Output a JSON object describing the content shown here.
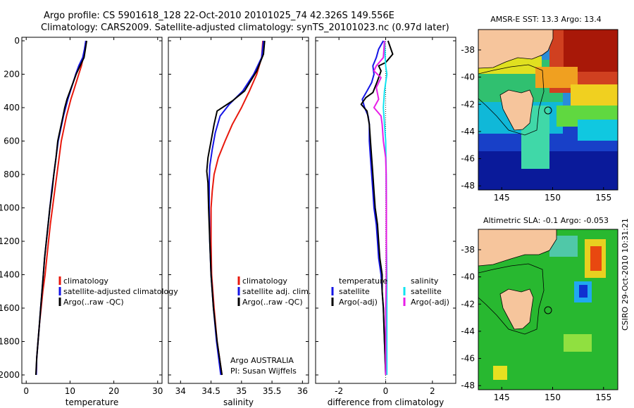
{
  "title": {
    "line1": "Argo profile: CS 5901618_128 22-Oct-2010 20101025_74 42.326S 149.556E",
    "line2": "Climatology: CARS2009. Satellite-adjusted climatology: synTS_20101023.nc (0.97d later)"
  },
  "credit": {
    "program": "Argo AUSTRALIA",
    "pi": "PI: Susan Wijffels"
  },
  "stamp": "CSIRO 29-Oct-2010 10:31:21",
  "colors": {
    "climatology": "#e8180c",
    "satellite": "#1414e6",
    "argo": "#000000",
    "sat_salinity": "#10e4f0",
    "argo_salinity": "#e81ee8",
    "land": "#f6c59c"
  },
  "chart_data": [
    {
      "type": "line",
      "xlabel": "temperature",
      "xlim": [
        -1,
        31
      ],
      "ylim": [
        2000,
        0
      ],
      "xticks": [
        0,
        10,
        20,
        30
      ],
      "yticks": [
        0,
        200,
        400,
        600,
        800,
        1000,
        1200,
        1400,
        1600,
        1800,
        2000
      ],
      "legend": [
        "climatology",
        "satellite-adjusted climatology",
        "Argo(..raw -QC)"
      ],
      "series": [
        {
          "name": "climatology",
          "color": "#e8180c",
          "points": [
            [
              13.6,
              0
            ],
            [
              13.4,
              50
            ],
            [
              13.0,
              100
            ],
            [
              12.6,
              150
            ],
            [
              12.0,
              200
            ],
            [
              11.4,
              250
            ],
            [
              10.8,
              300
            ],
            [
              10.2,
              350
            ],
            [
              9.7,
              400
            ],
            [
              9.2,
              450
            ],
            [
              8.8,
              500
            ],
            [
              8.4,
              550
            ],
            [
              8.0,
              600
            ],
            [
              7.5,
              700
            ],
            [
              7.0,
              800
            ],
            [
              6.5,
              900
            ],
            [
              6.0,
              1000
            ],
            [
              5.5,
              1100
            ],
            [
              5.1,
              1200
            ],
            [
              4.7,
              1300
            ],
            [
              4.3,
              1400
            ],
            [
              3.8,
              1500
            ],
            [
              3.4,
              1600
            ],
            [
              3.0,
              1700
            ],
            [
              2.7,
              1800
            ],
            [
              2.4,
              1900
            ],
            [
              2.3,
              2000
            ]
          ]
        },
        {
          "name": "satellite-adjusted climatology",
          "color": "#1414e6",
          "points": [
            [
              13.6,
              0
            ],
            [
              13.3,
              50
            ],
            [
              12.9,
              100
            ],
            [
              12.0,
              150
            ],
            [
              11.3,
              200
            ],
            [
              10.7,
              250
            ],
            [
              10.1,
              300
            ],
            [
              9.5,
              350
            ],
            [
              9.0,
              400
            ],
            [
              8.5,
              450
            ],
            [
              8.1,
              500
            ],
            [
              7.7,
              550
            ],
            [
              7.3,
              600
            ],
            [
              6.8,
              700
            ],
            [
              6.3,
              800
            ],
            [
              5.8,
              900
            ],
            [
              5.4,
              1000
            ],
            [
              5.0,
              1100
            ],
            [
              4.6,
              1200
            ],
            [
              4.2,
              1300
            ],
            [
              3.9,
              1400
            ],
            [
              3.6,
              1500
            ],
            [
              3.3,
              1600
            ],
            [
              3.0,
              1700
            ],
            [
              2.7,
              1800
            ],
            [
              2.4,
              1900
            ],
            [
              2.3,
              2000
            ]
          ]
        },
        {
          "name": "Argo(..raw -QC)",
          "color": "#000000",
          "points": [
            [
              13.8,
              0
            ],
            [
              13.5,
              50
            ],
            [
              13.2,
              100
            ],
            [
              12.3,
              150
            ],
            [
              11.4,
              200
            ],
            [
              10.7,
              250
            ],
            [
              10.0,
              300
            ],
            [
              9.3,
              350
            ],
            [
              8.8,
              400
            ],
            [
              8.4,
              450
            ],
            [
              8.0,
              500
            ],
            [
              7.6,
              550
            ],
            [
              7.2,
              600
            ],
            [
              6.8,
              700
            ],
            [
              6.3,
              800
            ],
            [
              5.9,
              900
            ],
            [
              5.4,
              1000
            ],
            [
              5.0,
              1100
            ],
            [
              4.6,
              1200
            ],
            [
              4.2,
              1300
            ],
            [
              3.9,
              1400
            ],
            [
              3.6,
              1500
            ],
            [
              3.3,
              1600
            ],
            [
              3.0,
              1700
            ],
            [
              2.7,
              1800
            ],
            [
              2.4,
              1900
            ],
            [
              2.2,
              2000
            ]
          ]
        }
      ]
    },
    {
      "type": "line",
      "xlabel": "salinity",
      "xlim": [
        33.8,
        36.1
      ],
      "ylim": [
        2000,
        0
      ],
      "xticks": [
        34,
        34.5,
        35,
        35.5,
        36
      ],
      "xticklabels": [
        "34",
        "34.5",
        "35",
        "35.5",
        "36"
      ],
      "yticks": [
        0,
        200,
        400,
        600,
        800,
        1000,
        1200,
        1400,
        1600,
        1800,
        2000
      ],
      "legend": [
        "climatology",
        "satellite adj. clim.",
        "Argo(..raw -QC)"
      ],
      "series": [
        {
          "name": "climatology",
          "color": "#e8180c",
          "points": [
            [
              35.35,
              0
            ],
            [
              35.33,
              100
            ],
            [
              35.25,
              200
            ],
            [
              35.13,
              300
            ],
            [
              35.0,
              400
            ],
            [
              34.85,
              500
            ],
            [
              34.73,
              600
            ],
            [
              34.62,
              700
            ],
            [
              34.55,
              800
            ],
            [
              34.52,
              900
            ],
            [
              34.5,
              1000
            ],
            [
              34.5,
              1200
            ],
            [
              34.51,
              1400
            ],
            [
              34.55,
              1600
            ],
            [
              34.6,
              1800
            ],
            [
              34.68,
              2000
            ]
          ]
        },
        {
          "name": "satellite adj. clim.",
          "color": "#1414e6",
          "points": [
            [
              35.36,
              0
            ],
            [
              35.33,
              100
            ],
            [
              35.2,
              200
            ],
            [
              35.02,
              300
            ],
            [
              34.8,
              380
            ],
            [
              34.65,
              450
            ],
            [
              34.57,
              550
            ],
            [
              34.52,
              650
            ],
            [
              34.48,
              750
            ],
            [
              34.47,
              850
            ],
            [
              34.47,
              1000
            ],
            [
              34.48,
              1200
            ],
            [
              34.5,
              1400
            ],
            [
              34.54,
              1600
            ],
            [
              34.59,
              1800
            ],
            [
              34.66,
              2000
            ]
          ]
        },
        {
          "name": "Argo(..raw -QC)",
          "color": "#000000",
          "points": [
            [
              35.38,
              0
            ],
            [
              35.36,
              80
            ],
            [
              35.25,
              180
            ],
            [
              35.05,
              300
            ],
            [
              34.85,
              360
            ],
            [
              34.6,
              420
            ],
            [
              34.55,
              500
            ],
            [
              34.5,
              600
            ],
            [
              34.45,
              700
            ],
            [
              34.43,
              780
            ],
            [
              34.45,
              850
            ],
            [
              34.46,
              1000
            ],
            [
              34.48,
              1200
            ],
            [
              34.5,
              1400
            ],
            [
              34.54,
              1600
            ],
            [
              34.6,
              1800
            ],
            [
              34.68,
              2000
            ]
          ]
        }
      ]
    },
    {
      "type": "line",
      "xlabel": "difference from climatology",
      "xlim": [
        -3,
        3
      ],
      "ylim": [
        2000,
        0
      ],
      "xticks": [
        -2,
        0,
        2
      ],
      "yticks": [
        0,
        200,
        400,
        600,
        800,
        1000,
        1200,
        1400,
        1600,
        1800,
        2000
      ],
      "legend_titles": [
        "temperature",
        "salinity"
      ],
      "legend": [
        "satellite",
        "Argo(-adj)",
        "satellite",
        "Argo(-adj)"
      ],
      "series": [
        {
          "name": "satellite",
          "color": "#1414e6",
          "points": [
            [
              -0.1,
              0
            ],
            [
              -0.3,
              50
            ],
            [
              -0.4,
              100
            ],
            [
              -0.55,
              150
            ],
            [
              -0.5,
              200
            ],
            [
              -0.6,
              250
            ],
            [
              -0.8,
              300
            ],
            [
              -1.0,
              350
            ],
            [
              -0.9,
              400
            ],
            [
              -0.75,
              450
            ],
            [
              -0.7,
              500
            ],
            [
              -0.7,
              600
            ],
            [
              -0.65,
              700
            ],
            [
              -0.6,
              800
            ],
            [
              -0.55,
              900
            ],
            [
              -0.5,
              1000
            ],
            [
              -0.4,
              1100
            ],
            [
              -0.35,
              1200
            ],
            [
              -0.3,
              1300
            ],
            [
              -0.2,
              1400
            ],
            [
              -0.15,
              1500
            ],
            [
              -0.1,
              1600
            ],
            [
              -0.05,
              1800
            ],
            [
              0.0,
              2000
            ]
          ]
        },
        {
          "name": "Argo(-adj)",
          "color": "#000000",
          "points": [
            [
              0.1,
              0
            ],
            [
              0.3,
              80
            ],
            [
              0.0,
              130
            ],
            [
              -0.3,
              150
            ],
            [
              -0.2,
              180
            ],
            [
              -0.35,
              240
            ],
            [
              -0.55,
              310
            ],
            [
              -0.85,
              340
            ],
            [
              -1.05,
              380
            ],
            [
              -0.8,
              420
            ],
            [
              -0.7,
              500
            ],
            [
              -0.65,
              600
            ],
            [
              -0.6,
              700
            ],
            [
              -0.55,
              800
            ],
            [
              -0.5,
              900
            ],
            [
              -0.45,
              1000
            ],
            [
              -0.35,
              1100
            ],
            [
              -0.3,
              1200
            ],
            [
              -0.25,
              1300
            ],
            [
              -0.15,
              1400
            ],
            [
              -0.15,
              1500
            ],
            [
              -0.1,
              1600
            ],
            [
              -0.05,
              1800
            ],
            [
              0.0,
              2000
            ]
          ]
        },
        {
          "name": "satellite",
          "color": "#10e4f0",
          "points": [
            [
              -0.05,
              0
            ],
            [
              -0.02,
              100
            ],
            [
              0.0,
              150
            ],
            [
              0.05,
              200
            ],
            [
              -0.05,
              300
            ],
            [
              -0.1,
              400
            ],
            [
              -0.05,
              500
            ],
            [
              0.0,
              600
            ],
            [
              0.02,
              800
            ],
            [
              0.03,
              1000
            ],
            [
              0.03,
              1200
            ],
            [
              0.05,
              1400
            ],
            [
              0.05,
              1600
            ],
            [
              0.05,
              1800
            ],
            [
              0.05,
              2000
            ]
          ]
        },
        {
          "name": "Argo(-adj)",
          "color": "#e81ee8",
          "points": [
            [
              -0.05,
              0
            ],
            [
              -0.1,
              100
            ],
            [
              -0.4,
              150
            ],
            [
              -0.5,
              180
            ],
            [
              -0.2,
              220
            ],
            [
              -0.4,
              280
            ],
            [
              -0.3,
              350
            ],
            [
              -0.5,
              400
            ],
            [
              -0.2,
              450
            ],
            [
              -0.15,
              500
            ],
            [
              -0.1,
              600
            ],
            [
              0.0,
              700
            ],
            [
              0.02,
              800
            ],
            [
              0.03,
              1000
            ],
            [
              0.03,
              1200
            ],
            [
              0.03,
              1400
            ],
            [
              0.0,
              1600
            ],
            [
              0.0,
              1800
            ],
            [
              0.0,
              2000
            ]
          ]
        }
      ]
    }
  ],
  "maps": [
    {
      "title": "AMSR-E SST: 13.3 Argo: 13.4",
      "xticks": [
        "145",
        "150",
        "155"
      ],
      "yticks": [
        "-38",
        "-40",
        "-42",
        "-44",
        "-46",
        "-48"
      ],
      "float": [
        149.556,
        -42.326
      ]
    },
    {
      "title": "Altimetric SLA: -0.1 Argo: -0.053",
      "xticks": [
        "145",
        "150",
        "155"
      ],
      "yticks": [
        "-38",
        "-40",
        "-42",
        "-44",
        "-46",
        "-48"
      ],
      "float": [
        149.556,
        -42.326
      ]
    }
  ]
}
